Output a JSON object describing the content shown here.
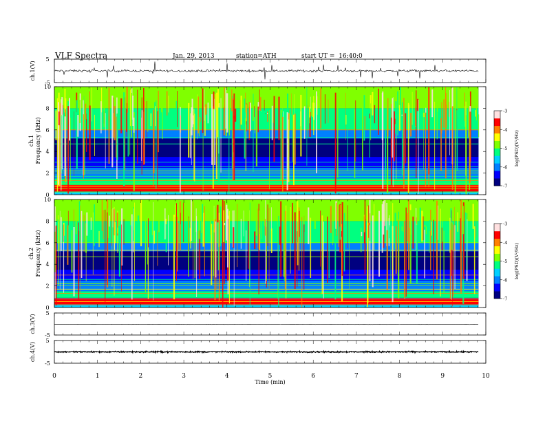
{
  "header": {
    "title": "VLF Spectra",
    "date": "Jan. 29, 2013",
    "station": "station=ATH",
    "start_ut": "start UT =  16:40:0"
  },
  "chart_data": [
    {
      "type": "line",
      "ylabel": "ch.1(V)",
      "ylim": [
        -5,
        5
      ],
      "yticks": [
        "5",
        "-5"
      ],
      "trace": {
        "level": 0.0,
        "noise": 0.6,
        "spikes": 0.9,
        "color": "#000000"
      }
    },
    {
      "type": "heatmap",
      "ylabel": [
        "ch.1",
        "Frequency (kHz)"
      ],
      "ylim": [
        0,
        10
      ],
      "yticks": [
        "0",
        "2",
        "4",
        "6",
        "8",
        "10"
      ],
      "colorbar": {
        "label": "log(PSD)(V²/Hz)",
        "range": [
          -7,
          -3
        ],
        "ticks": [
          "-3",
          "-4",
          "-5",
          "-6",
          "-7"
        ],
        "colors": [
          "#000080",
          "#0000ff",
          "#0080ff",
          "#00d0ff",
          "#00ff80",
          "#80ff00",
          "#ffff00",
          "#ff8000",
          "#ff0000",
          "#ffe0e0"
        ]
      }
    },
    {
      "type": "heatmap",
      "ylabel": [
        "ch.2",
        "Frequency (kHz)"
      ],
      "ylim": [
        0,
        10
      ],
      "yticks": [
        "0",
        "2",
        "4",
        "6",
        "8",
        "10"
      ],
      "colorbar": {
        "label": "log(PSD)(V²/Hz)",
        "range": [
          -7,
          -3
        ],
        "ticks": [
          "-3",
          "-4",
          "-5",
          "-6",
          "-7"
        ],
        "colors": [
          "#000080",
          "#0000ff",
          "#0080ff",
          "#00d0ff",
          "#00ff80",
          "#80ff00",
          "#ffff00",
          "#ff8000",
          "#ff0000",
          "#ffe0e0"
        ]
      }
    },
    {
      "type": "line",
      "ylabel": "ch.3(V)",
      "ylim": [
        -5,
        5
      ],
      "yticks": [
        "5",
        "-5"
      ],
      "trace": {
        "level": -0.2,
        "noise": 0.05,
        "spikes": 0.0,
        "color": "#000000"
      }
    },
    {
      "type": "line",
      "ylabel": "ch.4(V)",
      "ylim": [
        -5,
        5
      ],
      "yticks": [
        "5",
        "-5"
      ],
      "trace": {
        "level": 0.0,
        "noise": 0.35,
        "spikes": 0.0,
        "color": "#000000"
      }
    }
  ],
  "x_axis": {
    "label": "Time (min)",
    "xlim": [
      0,
      10
    ],
    "ticks": [
      "0",
      "1",
      "2",
      "3",
      "4",
      "5",
      "6",
      "7",
      "8",
      "9",
      "10"
    ],
    "data_end": 9.83
  }
}
